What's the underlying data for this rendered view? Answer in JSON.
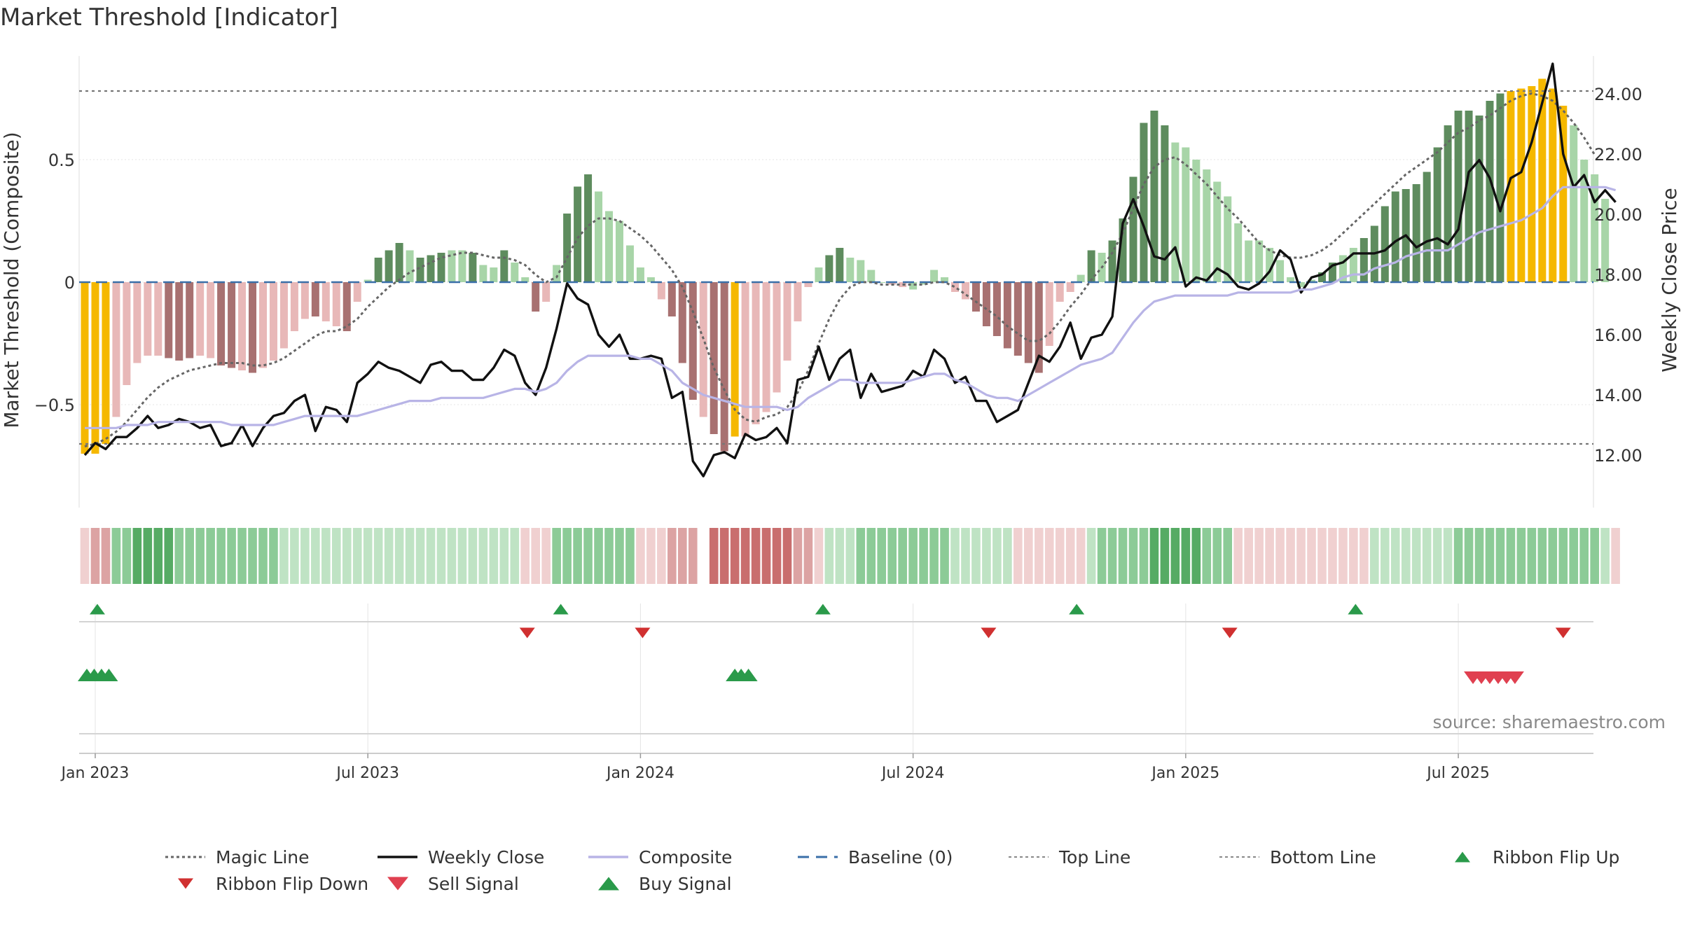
{
  "chart_data": {
    "type": "bar",
    "title": "Market Threshold [Indicator]",
    "ylabel": "Market Threshold (Composite)",
    "y2label": "Weekly Close Price",
    "source": "source: sharemaestro.com",
    "ylim": [
      -0.92,
      0.92
    ],
    "y2lim": [
      10.7,
      26.2
    ],
    "y_ticks": [
      {
        "v": 0.5,
        "label": "0.5"
      },
      {
        "v": 0,
        "label": "0"
      },
      {
        "v": -0.5,
        "label": "−0.5"
      }
    ],
    "y2_ticks": [
      {
        "v": 24,
        "label": "24.00"
      },
      {
        "v": 22,
        "label": "22.00"
      },
      {
        "v": 20,
        "label": "20.00"
      },
      {
        "v": 18,
        "label": "18.00"
      },
      {
        "v": 16,
        "label": "16.00"
      },
      {
        "v": 14,
        "label": "14.00"
      },
      {
        "v": 12,
        "label": "12.00"
      }
    ],
    "x_ticks": [
      {
        "week": 1,
        "label": "Jan 2023"
      },
      {
        "week": 27,
        "label": "Jul 2023"
      },
      {
        "week": 53,
        "label": "Jan 2024"
      },
      {
        "week": 79,
        "label": "Jul 2024"
      },
      {
        "week": 105,
        "label": "Jan 2025"
      },
      {
        "week": 131,
        "label": "Jul 2025"
      }
    ],
    "weeks": 145,
    "top_line": 0.78,
    "bottom_line": -0.66,
    "baseline": 0,
    "bar_colors": {
      "strong_up": "#5e8c5e",
      "weak_up": "#a8d5a8",
      "strong_down": "#a87171",
      "weak_down": "#e8b8b8",
      "extreme": "#f5b800"
    },
    "composite_bars": {
      "values": [
        -0.7,
        -0.7,
        -0.66,
        -0.55,
        -0.42,
        -0.33,
        -0.3,
        -0.3,
        -0.31,
        -0.32,
        -0.31,
        -0.3,
        -0.31,
        -0.34,
        -0.35,
        -0.36,
        -0.37,
        -0.35,
        -0.32,
        -0.27,
        -0.2,
        -0.15,
        -0.14,
        -0.16,
        -0.18,
        -0.2,
        -0.08,
        0.01,
        0.1,
        0.13,
        0.16,
        0.13,
        0.1,
        0.11,
        0.12,
        0.13,
        0.13,
        0.12,
        0.07,
        0.06,
        0.13,
        0.08,
        0.02,
        -0.12,
        -0.08,
        0.07,
        0.28,
        0.39,
        0.44,
        0.37,
        0.29,
        0.25,
        0.15,
        0.06,
        0.02,
        -0.07,
        -0.14,
        -0.33,
        -0.48,
        -0.55,
        -0.62,
        -0.69,
        -0.63,
        -0.63,
        -0.58,
        -0.53,
        -0.45,
        -0.32,
        -0.16,
        -0.02,
        0.06,
        0.11,
        0.14,
        0.1,
        0.09,
        0.05,
        0.0,
        -0.01,
        -0.02,
        -0.03,
        -0.01,
        0.05,
        0.02,
        -0.04,
        -0.07,
        -0.12,
        -0.18,
        -0.22,
        -0.27,
        -0.3,
        -0.33,
        -0.37,
        -0.26,
        -0.08,
        -0.04,
        0.03,
        0.13,
        0.12,
        0.17,
        0.26,
        0.43,
        0.65,
        0.7,
        0.64,
        0.57,
        0.55,
        0.5,
        0.46,
        0.41,
        0.35,
        0.24,
        0.17,
        0.17,
        0.14,
        0.09,
        0.02,
        -0.02,
        0.01,
        0.04,
        0.08,
        0.11,
        0.14,
        0.18,
        0.23,
        0.31,
        0.37,
        0.38,
        0.4,
        0.45,
        0.55,
        0.64,
        0.7,
        0.7,
        0.68,
        0.74,
        0.77,
        0.78,
        0.79,
        0.8,
        0.83,
        0.79,
        0.72,
        0.64,
        0.5,
        0.44,
        0.34
      ],
      "colors": [
        "extreme",
        "extreme",
        "extreme",
        "weak_down",
        "weak_down",
        "weak_down",
        "weak_down",
        "weak_down",
        "strong_down",
        "strong_down",
        "strong_down",
        "weak_down",
        "weak_down",
        "strong_down",
        "strong_down",
        "weak_down",
        "strong_down",
        "weak_down",
        "weak_down",
        "weak_down",
        "weak_down",
        "weak_down",
        "strong_down",
        "weak_down",
        "weak_down",
        "strong_down",
        "weak_down",
        "weak_up",
        "strong_up",
        "strong_up",
        "strong_up",
        "weak_up",
        "strong_up",
        "strong_up",
        "strong_up",
        "weak_up",
        "weak_up",
        "strong_up",
        "weak_up",
        "weak_up",
        "strong_up",
        "weak_up",
        "weak_up",
        "strong_down",
        "weak_down",
        "weak_up",
        "strong_up",
        "strong_up",
        "strong_up",
        "weak_up",
        "weak_up",
        "weak_up",
        "weak_up",
        "weak_up",
        "weak_up",
        "weak_down",
        "strong_down",
        "strong_down",
        "strong_down",
        "weak_down",
        "strong_down",
        "strong_down",
        "extreme",
        "weak_down",
        "weak_down",
        "weak_down",
        "weak_down",
        "weak_down",
        "weak_down",
        "weak_down",
        "weak_up",
        "strong_up",
        "strong_up",
        "weak_up",
        "weak_up",
        "weak_up",
        "weak_up",
        "weak_down",
        "weak_down",
        "weak_up",
        "weak_up",
        "weak_up",
        "weak_up",
        "weak_down",
        "weak_down",
        "strong_down",
        "strong_down",
        "strong_down",
        "strong_down",
        "strong_down",
        "strong_down",
        "strong_down",
        "weak_down",
        "weak_down",
        "weak_down",
        "weak_up",
        "strong_up",
        "weak_up",
        "strong_up",
        "strong_up",
        "strong_up",
        "strong_up",
        "strong_up",
        "strong_up",
        "weak_up",
        "weak_up",
        "weak_up",
        "weak_up",
        "weak_up",
        "weak_up",
        "weak_up",
        "weak_up",
        "weak_up",
        "weak_up",
        "weak_up",
        "weak_up",
        "weak_up",
        "weak_up",
        "strong_up",
        "strong_up",
        "weak_up",
        "weak_up",
        "strong_up",
        "strong_up",
        "strong_up",
        "strong_up",
        "strong_up",
        "strong_up",
        "strong_up",
        "strong_up",
        "strong_up",
        "strong_up",
        "strong_up",
        "strong_up",
        "strong_up",
        "strong_up",
        "extreme",
        "extreme",
        "extreme",
        "extreme",
        "extreme",
        "extreme",
        "weak_up",
        "weak_up",
        "weak_up",
        "weak_up",
        "weak_up",
        "weak_up"
      ]
    },
    "series": [
      {
        "name": "Magic Line",
        "axis": "left",
        "color": "#666666",
        "style": "dotted",
        "values": [
          -0.67,
          -0.66,
          -0.64,
          -0.61,
          -0.57,
          -0.52,
          -0.47,
          -0.43,
          -0.4,
          -0.38,
          -0.36,
          -0.35,
          -0.34,
          -0.33,
          -0.33,
          -0.33,
          -0.34,
          -0.34,
          -0.33,
          -0.31,
          -0.28,
          -0.25,
          -0.22,
          -0.2,
          -0.2,
          -0.18,
          -0.15,
          -0.1,
          -0.06,
          -0.02,
          0.01,
          0.04,
          0.06,
          0.08,
          0.1,
          0.11,
          0.12,
          0.12,
          0.11,
          0.1,
          0.1,
          0.09,
          0.07,
          0.03,
          0.0,
          0.02,
          0.1,
          0.18,
          0.23,
          0.26,
          0.26,
          0.25,
          0.22,
          0.19,
          0.15,
          0.1,
          0.05,
          -0.02,
          -0.12,
          -0.23,
          -0.35,
          -0.44,
          -0.52,
          -0.56,
          -0.57,
          -0.55,
          -0.54,
          -0.51,
          -0.45,
          -0.36,
          -0.25,
          -0.15,
          -0.07,
          -0.02,
          0.0,
          0.0,
          -0.01,
          -0.01,
          -0.01,
          -0.01,
          -0.01,
          0.0,
          0.0,
          -0.02,
          -0.05,
          -0.08,
          -0.11,
          -0.14,
          -0.18,
          -0.21,
          -0.24,
          -0.24,
          -0.21,
          -0.16,
          -0.1,
          -0.05,
          0.01,
          0.06,
          0.12,
          0.2,
          0.3,
          0.4,
          0.47,
          0.5,
          0.51,
          0.48,
          0.44,
          0.4,
          0.35,
          0.3,
          0.26,
          0.21,
          0.16,
          0.13,
          0.11,
          0.1,
          0.1,
          0.11,
          0.13,
          0.16,
          0.2,
          0.24,
          0.28,
          0.32,
          0.36,
          0.4,
          0.44,
          0.47,
          0.5,
          0.53,
          0.57,
          0.61,
          0.63,
          0.66,
          0.68,
          0.71,
          0.74,
          0.76,
          0.77,
          0.76,
          0.74,
          0.7,
          0.65,
          0.59,
          0.52
        ]
      },
      {
        "name": "Weekly Close",
        "axis": "right",
        "color": "#111111",
        "style": "solid",
        "values": [
          12.0,
          12.4,
          12.2,
          12.6,
          12.6,
          12.9,
          13.3,
          12.9,
          13.0,
          13.2,
          13.1,
          12.9,
          13.0,
          12.3,
          12.4,
          13.0,
          12.3,
          12.9,
          13.3,
          13.4,
          13.8,
          14.0,
          12.8,
          13.6,
          13.5,
          13.1,
          14.4,
          14.7,
          15.1,
          14.9,
          14.8,
          14.6,
          14.4,
          15.0,
          15.1,
          14.8,
          14.8,
          14.5,
          14.5,
          14.9,
          15.5,
          15.3,
          14.4,
          14.0,
          14.9,
          16.2,
          17.7,
          17.2,
          17.0,
          16.0,
          15.6,
          16.0,
          15.2,
          15.2,
          15.3,
          15.2,
          13.9,
          14.1,
          11.8,
          11.3,
          12.0,
          12.1,
          11.9,
          12.7,
          12.5,
          12.6,
          12.9,
          12.4,
          14.5,
          14.6,
          15.6,
          14.5,
          15.2,
          15.5,
          13.9,
          14.7,
          14.1,
          14.2,
          14.3,
          14.8,
          14.6,
          15.5,
          15.2,
          14.4,
          14.6,
          13.8,
          13.8,
          13.1,
          13.3,
          13.5,
          14.4,
          15.3,
          15.1,
          15.6,
          16.4,
          15.2,
          15.9,
          16.0,
          16.6,
          19.7,
          20.5,
          19.6,
          18.6,
          18.5,
          18.9,
          17.6,
          17.9,
          17.8,
          18.2,
          18.0,
          17.6,
          17.5,
          17.7,
          18.1,
          18.8,
          18.5,
          17.4,
          17.9,
          18.0,
          18.3,
          18.4,
          18.7,
          18.7,
          18.7,
          18.8,
          19.1,
          19.3,
          18.9,
          19.1,
          19.2,
          19.0,
          19.5,
          21.4,
          21.8,
          21.2,
          20.1,
          21.2,
          21.4,
          22.4,
          23.7,
          25.0,
          22.0,
          20.9,
          21.3,
          20.4,
          20.8,
          20.4
        ]
      },
      {
        "name": "Composite",
        "axis": "right",
        "color": "#b8b4e6",
        "style": "solid",
        "values": [
          12.9,
          12.9,
          12.9,
          12.9,
          13.0,
          13.0,
          13.0,
          13.1,
          13.1,
          13.1,
          13.1,
          13.1,
          13.1,
          13.1,
          13.0,
          13.0,
          13.0,
          13.0,
          13.0,
          13.1,
          13.2,
          13.3,
          13.3,
          13.3,
          13.3,
          13.3,
          13.3,
          13.4,
          13.5,
          13.6,
          13.7,
          13.8,
          13.8,
          13.8,
          13.9,
          13.9,
          13.9,
          13.9,
          13.9,
          14.0,
          14.1,
          14.2,
          14.2,
          14.1,
          14.2,
          14.4,
          14.8,
          15.1,
          15.3,
          15.3,
          15.3,
          15.3,
          15.3,
          15.2,
          15.2,
          15.0,
          14.8,
          14.4,
          14.2,
          14.0,
          13.9,
          13.8,
          13.7,
          13.6,
          13.6,
          13.6,
          13.6,
          13.5,
          13.6,
          13.9,
          14.1,
          14.3,
          14.5,
          14.5,
          14.4,
          14.4,
          14.4,
          14.4,
          14.4,
          14.5,
          14.6,
          14.7,
          14.7,
          14.5,
          14.4,
          14.2,
          14.0,
          13.9,
          13.9,
          13.8,
          14.0,
          14.2,
          14.4,
          14.6,
          14.8,
          15.0,
          15.1,
          15.2,
          15.4,
          15.9,
          16.4,
          16.8,
          17.1,
          17.2,
          17.3,
          17.3,
          17.3,
          17.3,
          17.3,
          17.3,
          17.4,
          17.4,
          17.4,
          17.4,
          17.4,
          17.4,
          17.5,
          17.5,
          17.6,
          17.7,
          17.9,
          18.0,
          18.0,
          18.2,
          18.3,
          18.4,
          18.6,
          18.7,
          18.8,
          18.8,
          18.8,
          19.0,
          19.2,
          19.4,
          19.5,
          19.6,
          19.7,
          19.8,
          20.0,
          20.2,
          20.6,
          20.9,
          20.9,
          20.9,
          20.9,
          20.9,
          20.8
        ]
      }
    ],
    "ribbon": [
      -1,
      -2,
      -2,
      2,
      2,
      3,
      3,
      3,
      3,
      2,
      2,
      2,
      2,
      2,
      2,
      2,
      2,
      2,
      2,
      1,
      1,
      1,
      1,
      1,
      1,
      1,
      1,
      1,
      1,
      1,
      1,
      1,
      1,
      1,
      1,
      1,
      1,
      1,
      1,
      1,
      1,
      1,
      -1,
      -1,
      -1,
      2,
      2,
      2,
      2,
      2,
      2,
      2,
      2,
      -1,
      -1,
      -1,
      -2,
      -2,
      -2,
      0,
      -3,
      -3,
      -3,
      -3,
      -3,
      -3,
      -3,
      -3,
      -2,
      -2,
      -1,
      1,
      1,
      1,
      2,
      2,
      2,
      2,
      2,
      2,
      2,
      2,
      2,
      1,
      1,
      1,
      1,
      1,
      1,
      -1,
      -1,
      -1,
      -1,
      -1,
      -1,
      -1,
      1,
      2,
      2,
      2,
      2,
      2,
      3,
      3,
      3,
      3,
      3,
      2,
      2,
      2,
      -1,
      -1,
      -1,
      -1,
      -1,
      -1,
      -1,
      -1,
      -1,
      -1,
      -1,
      -1,
      -1,
      1,
      1,
      1,
      1,
      1,
      1,
      1,
      1,
      2,
      2,
      2,
      2,
      2,
      2,
      2,
      2,
      2,
      2,
      2,
      2,
      2,
      2,
      1,
      -1
    ],
    "ribbon_flip_up_weeks": [
      1.2,
      45.4,
      70.4,
      94.6,
      121.2
    ],
    "ribbon_flip_down_weeks": [
      42.2,
      53.2,
      86.2,
      109.2,
      141.0
    ],
    "buy_signal_weeks": [
      0.2,
      0.9,
      1.6,
      2.3,
      62.0,
      62.6,
      63.3
    ],
    "sell_signal_weeks": [
      132.4,
      133.2,
      134.0,
      134.8,
      135.6,
      136.4
    ],
    "legend": [
      {
        "label": "Magic Line",
        "kind": "dotted",
        "color": "#666666"
      },
      {
        "label": "Weekly Close",
        "kind": "solid",
        "color": "#111111"
      },
      {
        "label": "Composite",
        "kind": "solid",
        "color": "#b8b4e6"
      },
      {
        "label": "Baseline (0)",
        "kind": "dashed",
        "color": "#3a6fa8"
      },
      {
        "label": "Top Line",
        "kind": "dotted-thin",
        "color": "#888888"
      },
      {
        "label": "Bottom Line",
        "kind": "dotted-thin",
        "color": "#888888"
      },
      {
        "label": "Ribbon Flip Up",
        "kind": "tri-up",
        "color": "#2a9a4a"
      },
      {
        "label": "Ribbon Flip Down",
        "kind": "tri-down",
        "color": "#d03030"
      },
      {
        "label": "Sell Signal",
        "kind": "tri-down-big",
        "color": "#e04050"
      },
      {
        "label": "Buy Signal",
        "kind": "tri-up-big",
        "color": "#2a9a4a"
      }
    ],
    "legend_placement": "bottom",
    "grid": true
  }
}
